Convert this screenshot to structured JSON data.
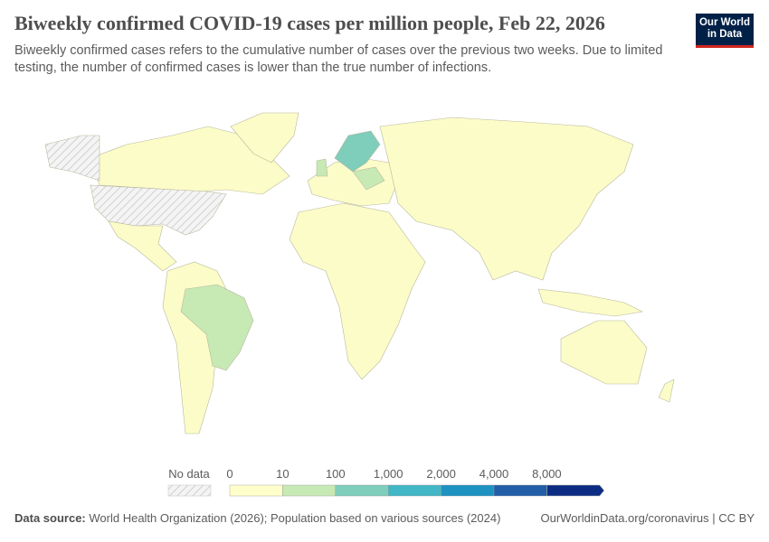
{
  "header": {
    "title": "Biweekly confirmed COVID-19 cases per million people, Feb 22, 2026",
    "subtitle": "Biweekly confirmed cases refers to the cumulative number of cases over the previous two weeks. Due to limited testing, the number of confirmed cases is lower than the true number of infections.",
    "logo": {
      "line1": "Our World",
      "line2": "in Data",
      "bg": "#002147",
      "accent": "#ce261e"
    }
  },
  "legend": {
    "no_data_label": "No data",
    "ticks": [
      "0",
      "10",
      "100",
      "1,000",
      "2,000",
      "4,000",
      "8,000"
    ],
    "bins": [
      {
        "color": "#ffffcc"
      },
      {
        "color": "#c7e9b4"
      },
      {
        "color": "#7fcdbb"
      },
      {
        "color": "#41b6c4"
      },
      {
        "color": "#1d91c0"
      },
      {
        "color": "#225ea8"
      },
      {
        "color": "#0c2c84"
      }
    ]
  },
  "footer": {
    "source_label": "Data source:",
    "source_text": "World Health Organization (2026); Population based on various sources (2024)",
    "link": "OurWorldinData.org/coronavirus | CC BY"
  }
}
